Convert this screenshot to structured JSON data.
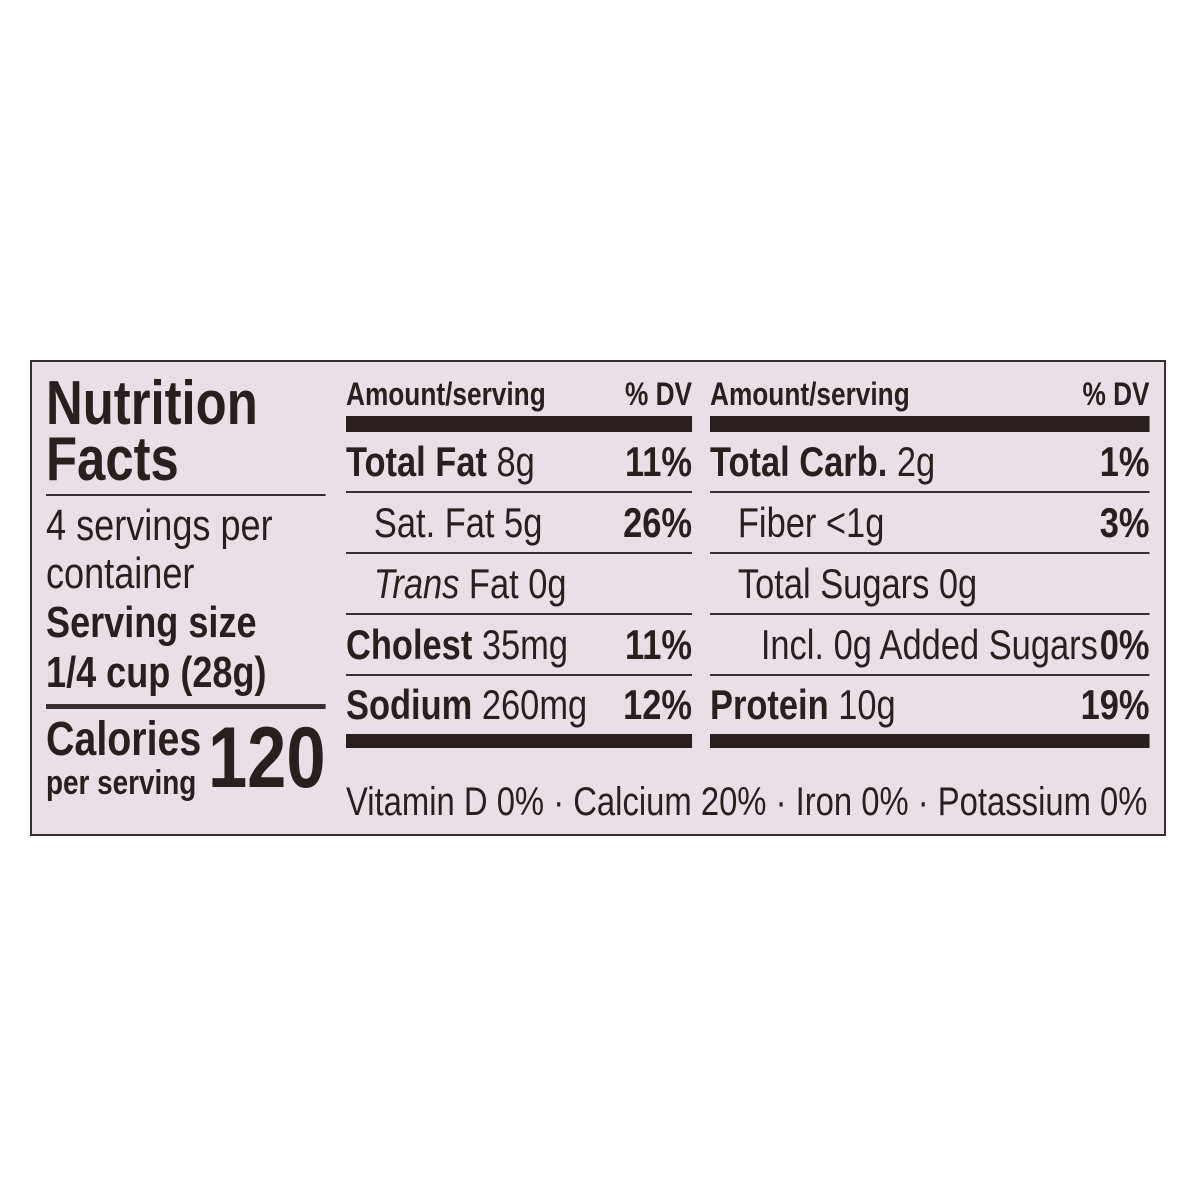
{
  "title": "Nutrition Facts",
  "servings": "4 servings per container",
  "serving_size": {
    "label": "Serving size",
    "value": "1/4 cup (28g)"
  },
  "calories": {
    "label": "Calories",
    "sublabel": "per serving",
    "value": "120"
  },
  "columns": [
    {
      "header": {
        "amount": "Amount/serving",
        "dv": "% DV"
      },
      "rows": [
        {
          "name": "Total Fat",
          "amount": "8g",
          "dv": "11%"
        },
        {
          "name": "Sat. Fat",
          "amount": "5g",
          "dv": "26%"
        },
        {
          "name": "Trans",
          "amount": "Fat 0g"
        },
        {
          "name": "Cholest",
          "amount": "35mg",
          "dv": "11%"
        },
        {
          "name": "Sodium",
          "amount": "260mg",
          "dv": "12%"
        }
      ]
    },
    {
      "header": {
        "amount": "Amount/serving",
        "dv": "% DV"
      },
      "rows": [
        {
          "name": "Total Carb.",
          "amount": "2g",
          "dv": "1%"
        },
        {
          "name": "Fiber",
          "amount": "<1g",
          "dv": "3%"
        },
        {
          "name": "Total Sugars",
          "amount": "0g"
        },
        {
          "name": "Incl. 0g Added Sugars",
          "dv": "0%"
        },
        {
          "name": "Protein",
          "amount": "10g",
          "dv": "19%"
        }
      ]
    }
  ],
  "footer": "Vitamin D 0% · Calcium 20% · Iron 0% · Potassium 0%"
}
